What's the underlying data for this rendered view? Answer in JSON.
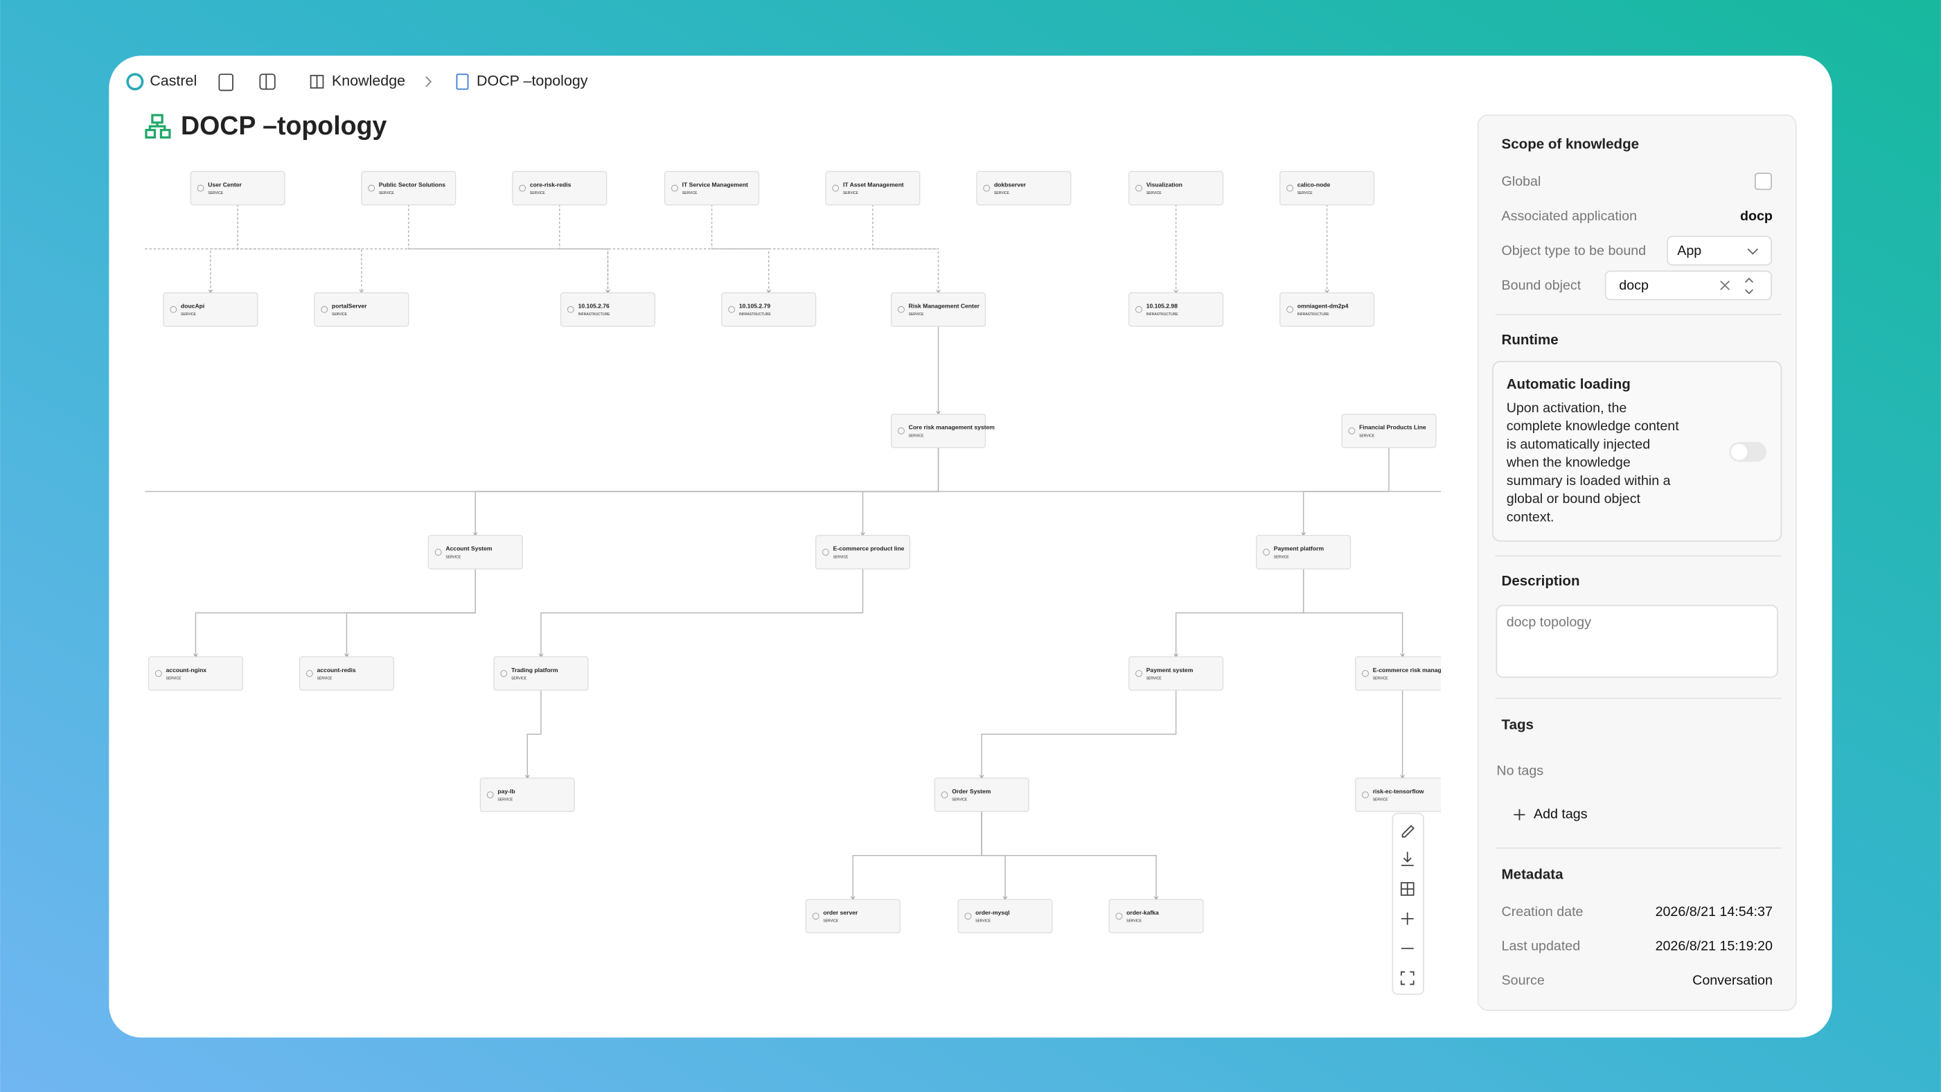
{
  "header": {
    "app": "Castrel",
    "breadcrumb": [
      "Knowledge",
      "DOCP –topology"
    ],
    "title": "DOCP –topology"
  },
  "topology": {
    "nodes": [
      {
        "label": "User Center",
        "kind": "SERVICE"
      },
      {
        "label": "Public Sector Solutions",
        "kind": "SERVICE"
      },
      {
        "label": "core-risk-redis",
        "kind": "SERVICE"
      },
      {
        "label": "IT Service Management",
        "kind": "SERVICE"
      },
      {
        "label": "IT Asset Management",
        "kind": "SERVICE"
      },
      {
        "label": "dokbserver",
        "kind": "SERVICE"
      },
      {
        "label": "Visualization",
        "kind": "SERVICE"
      },
      {
        "label": "calico-node",
        "kind": "SERVICE"
      },
      {
        "label": "doucApi",
        "kind": "SERVICE"
      },
      {
        "label": "portalServer",
        "kind": "SERVICE"
      },
      {
        "label": "10.105.2.76",
        "kind": "INFRASTRUCTURE"
      },
      {
        "label": "10.105.2.79",
        "kind": "INFRASTRUCTURE"
      },
      {
        "label": "Risk Management Center",
        "kind": "SERVICE"
      },
      {
        "label": "10.105.2.98",
        "kind": "INFRASTRUCTURE"
      },
      {
        "label": "omniagent-dm2p4",
        "kind": "INFRASTRUCTURE"
      },
      {
        "label": "Core risk management system",
        "kind": "SERVICE"
      },
      {
        "label": "Financial Products Line",
        "kind": "SERVICE"
      },
      {
        "label": "Account System",
        "kind": "SERVICE"
      },
      {
        "label": "E-commerce product line",
        "kind": "SERVICE"
      },
      {
        "label": "Payment platform",
        "kind": "SERVICE"
      },
      {
        "label": "account-nginx",
        "kind": "SERVICE"
      },
      {
        "label": "account-redis",
        "kind": "SERVICE"
      },
      {
        "label": "Trading platform",
        "kind": "SERVICE"
      },
      {
        "label": "Payment system",
        "kind": "SERVICE"
      },
      {
        "label": "E-commerce risk management system",
        "kind": "SERVICE"
      },
      {
        "label": "pay-lb",
        "kind": "SERVICE"
      },
      {
        "label": "Order System",
        "kind": "SERVICE"
      },
      {
        "label": "risk-ec-tensorflow",
        "kind": "SERVICE"
      },
      {
        "label": "order server",
        "kind": "SERVICE"
      },
      {
        "label": "order-mysql",
        "kind": "SERVICE"
      },
      {
        "label": "order-kafka",
        "kind": "SERVICE"
      }
    ]
  },
  "panel": {
    "scope": {
      "title": "Scope of knowledge",
      "global": "Global",
      "app_label": "Associated application",
      "app_value": "docp",
      "type_label": "Object type to be bound",
      "type_value": "App",
      "bound_label": "Bound object",
      "bound_value": "docp"
    },
    "runtime": {
      "title": "Runtime",
      "option": "Automatic loading",
      "lines": [
        "Upon activation, the",
        "complete knowledge content",
        "is automatically injected",
        "when the knowledge",
        "summary is loaded within a",
        "global or bound object",
        "context."
      ]
    },
    "description": {
      "title": "Description",
      "value": "docp topology"
    },
    "tags": {
      "title": "Tags",
      "empty": "No tags",
      "add": "Add tags"
    },
    "metadata": {
      "title": "Metadata",
      "rows": [
        [
          "Creation date",
          "2026/8/21 14:54:37"
        ],
        [
          "Last updated",
          "2026/8/21 15:19:20"
        ],
        [
          "Source",
          "Conversation"
        ]
      ]
    }
  }
}
